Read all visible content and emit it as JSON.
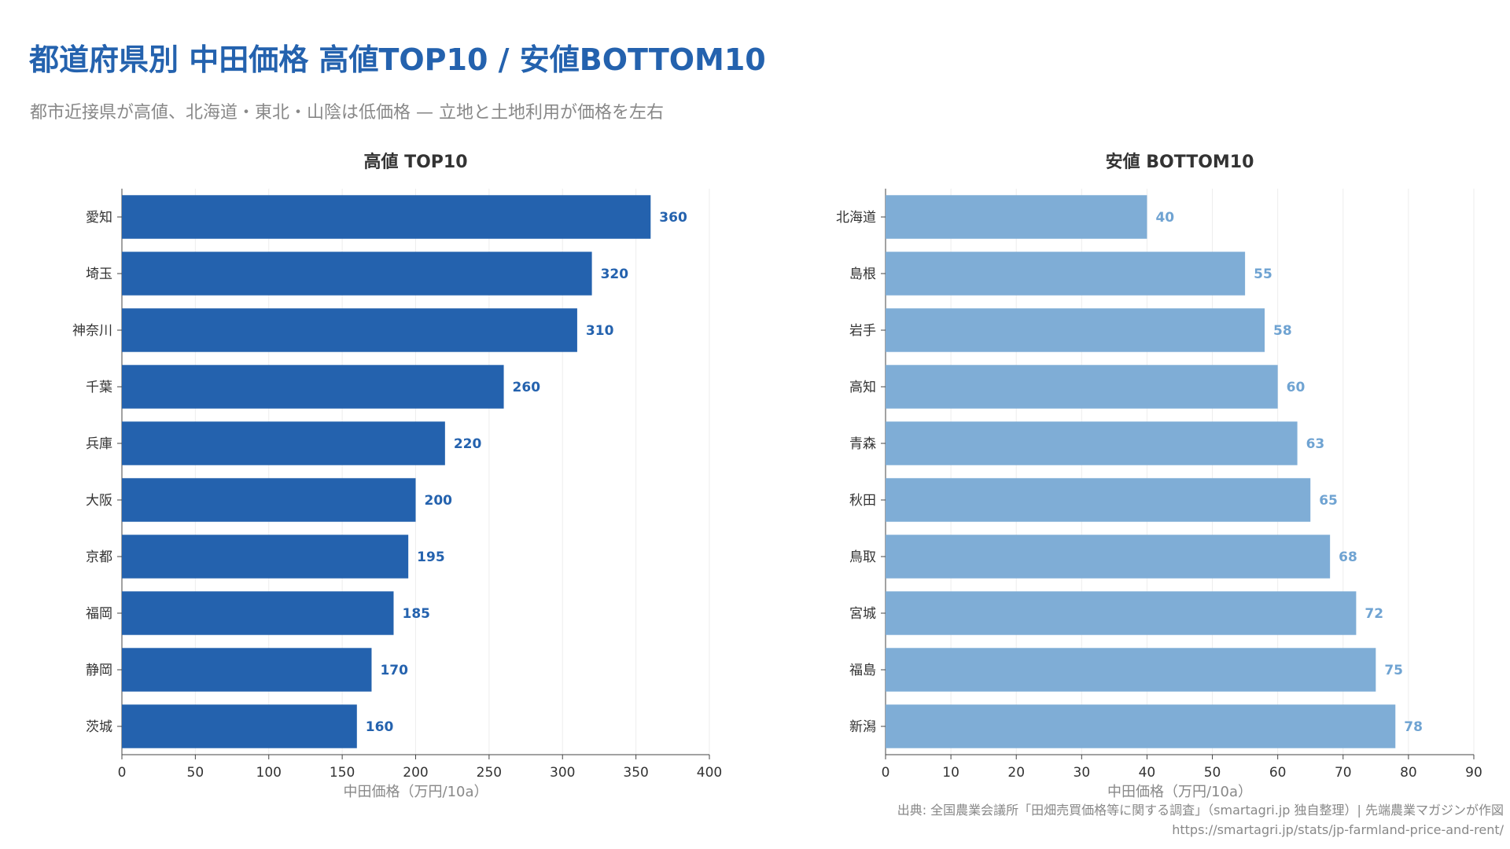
{
  "title": "都道府県別 中田価格 高値TOP10 / 安値BOTTOM10",
  "subtitle": "都市近接県が高値、北海道・東北・山陰は低価格 — 立地と土地利用が価格を左右",
  "source": {
    "line1": "出典: 全国農業会議所「田畑売買価格等に関する調査」（smartagri.jp 独自整理）| 先端農業マガジンが作図",
    "line2": "https://smartagri.jp/stats/jp-farmland-price-and-rent/"
  },
  "colors": {
    "top": "#2462ae",
    "bottom": "#7fadd6",
    "bottom_label": "#6fa3d2",
    "grid": "#eeeeee",
    "axis": "#444444"
  },
  "chart_data": [
    {
      "type": "bar",
      "orientation": "horizontal",
      "title": "高値 TOP10",
      "xlabel": "中田価格（万円/10a）",
      "ylabel": "",
      "categories": [
        "愛知",
        "埼玉",
        "神奈川",
        "千葉",
        "兵庫",
        "大阪",
        "京都",
        "福岡",
        "静岡",
        "茨城"
      ],
      "values": [
        360,
        320,
        310,
        260,
        220,
        200,
        195,
        185,
        170,
        160
      ],
      "xlim": [
        0,
        400
      ],
      "xticks": [
        0,
        50,
        100,
        150,
        200,
        250,
        300,
        350,
        400
      ],
      "grid": true,
      "bar_color": "#2462ae",
      "label_color": "#2462ae"
    },
    {
      "type": "bar",
      "orientation": "horizontal",
      "title": "安値 BOTTOM10",
      "xlabel": "中田価格（万円/10a）",
      "ylabel": "",
      "categories": [
        "北海道",
        "島根",
        "岩手",
        "高知",
        "青森",
        "秋田",
        "鳥取",
        "宮城",
        "福島",
        "新潟"
      ],
      "values": [
        40,
        55,
        58,
        60,
        63,
        65,
        68,
        72,
        75,
        78
      ],
      "xlim": [
        0,
        90
      ],
      "xticks": [
        0,
        10,
        20,
        30,
        40,
        50,
        60,
        70,
        80,
        90
      ],
      "grid": true,
      "bar_color": "#7fadd6",
      "label_color": "#6fa3d2"
    }
  ]
}
